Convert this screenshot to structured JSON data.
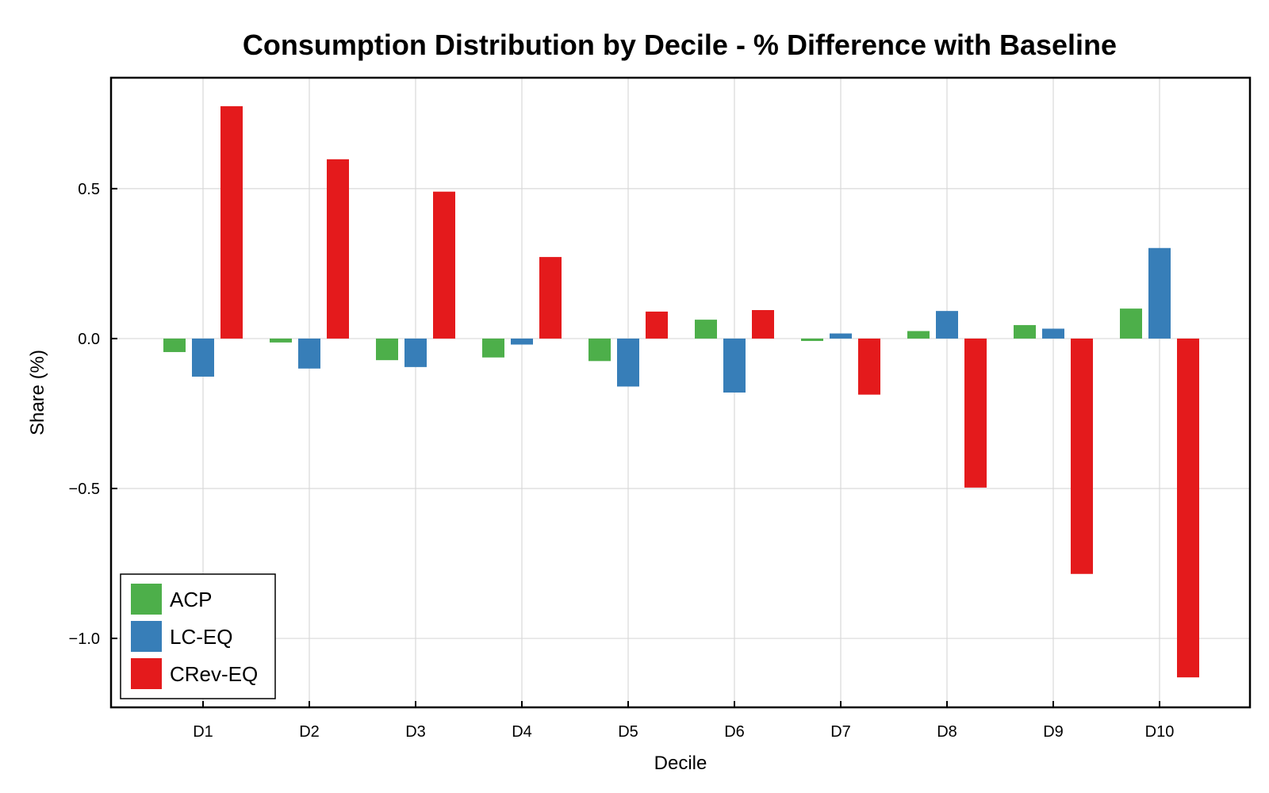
{
  "chart_data": {
    "type": "bar",
    "title": "Consumption Distribution by Decile - % Difference with Baseline",
    "xlabel": "Decile",
    "ylabel": "Share (%)",
    "categories": [
      "D1",
      "D2",
      "D3",
      "D4",
      "D5",
      "D6",
      "D7",
      "D8",
      "D9",
      "D10"
    ],
    "ylim": [
      -1.23,
      0.87
    ],
    "yticks": [
      0.5,
      0.0,
      -0.5,
      -1.0
    ],
    "ytick_labels": [
      "0.5",
      "0.0",
      "−0.5",
      "−1.0"
    ],
    "grid": true,
    "legend_position": "bottom-left",
    "series": [
      {
        "name": "ACP",
        "color": "#4daf4a",
        "values": [
          -0.045,
          -0.013,
          -0.072,
          -0.063,
          -0.075,
          0.063,
          -0.008,
          0.025,
          0.045,
          0.1
        ]
      },
      {
        "name": "LC-EQ",
        "color": "#377eb8",
        "values": [
          -0.127,
          -0.1,
          -0.095,
          -0.02,
          -0.16,
          -0.18,
          0.017,
          0.092,
          0.033,
          0.302
        ]
      },
      {
        "name": "CRev-EQ",
        "color": "#e41a1c",
        "values": [
          0.775,
          0.598,
          0.49,
          0.272,
          0.09,
          0.095,
          -0.187,
          -0.497,
          -0.785,
          -1.13
        ]
      }
    ]
  }
}
